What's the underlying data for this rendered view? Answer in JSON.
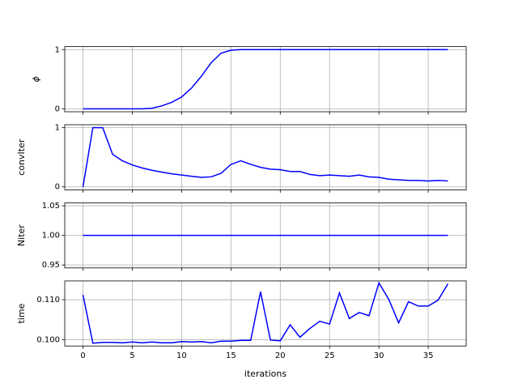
{
  "chart_data": [
    {
      "type": "line",
      "ylabel": "ϕ",
      "color": "#0000ff",
      "grid": true,
      "x": [
        0,
        1,
        2,
        3,
        4,
        5,
        6,
        7,
        8,
        9,
        10,
        11,
        12,
        13,
        14,
        15,
        16,
        17,
        18,
        19,
        20,
        21,
        22,
        23,
        24,
        25,
        26,
        27,
        28,
        29,
        30,
        31,
        32,
        33,
        34,
        35,
        36,
        37
      ],
      "xlim": [
        -1.85,
        38.85
      ],
      "xticks": [
        0,
        5,
        10,
        15,
        20,
        25,
        30,
        35
      ],
      "values": [
        0,
        0,
        0,
        0,
        0,
        0,
        0,
        0.01,
        0.05,
        0.11,
        0.2,
        0.35,
        0.55,
        0.78,
        0.94,
        0.99,
        1,
        1,
        1,
        1,
        1,
        1,
        1,
        1,
        1,
        1,
        1,
        1,
        1,
        1,
        1,
        1,
        1,
        1,
        1,
        1,
        1,
        1
      ],
      "ylim": [
        -0.05,
        1.05
      ],
      "yticks": [
        0,
        1
      ]
    },
    {
      "type": "line",
      "ylabel": "convIter",
      "color": "#0000ff",
      "grid": true,
      "x": [
        0,
        1,
        2,
        3,
        4,
        5,
        6,
        7,
        8,
        9,
        10,
        11,
        12,
        13,
        14,
        15,
        16,
        17,
        18,
        19,
        20,
        21,
        22,
        23,
        24,
        25,
        26,
        27,
        28,
        29,
        30,
        31,
        32,
        33,
        34,
        35,
        36,
        37
      ],
      "xlim": [
        -1.85,
        38.85
      ],
      "xticks": [
        0,
        5,
        10,
        15,
        20,
        25,
        30,
        35
      ],
      "values": [
        0,
        1,
        1,
        0.55,
        0.44,
        0.37,
        0.32,
        0.28,
        0.25,
        0.22,
        0.2,
        0.18,
        0.16,
        0.17,
        0.23,
        0.38,
        0.44,
        0.38,
        0.33,
        0.3,
        0.29,
        0.26,
        0.26,
        0.21,
        0.19,
        0.2,
        0.19,
        0.18,
        0.2,
        0.17,
        0.16,
        0.13,
        0.12,
        0.11,
        0.11,
        0.1,
        0.11,
        0.1
      ],
      "ylim": [
        -0.05,
        1.05
      ],
      "yticks": [
        0,
        1
      ]
    },
    {
      "type": "line",
      "ylabel": "Niter",
      "color": "#0000ff",
      "grid": true,
      "x": [
        0,
        1,
        2,
        3,
        4,
        5,
        6,
        7,
        8,
        9,
        10,
        11,
        12,
        13,
        14,
        15,
        16,
        17,
        18,
        19,
        20,
        21,
        22,
        23,
        24,
        25,
        26,
        27,
        28,
        29,
        30,
        31,
        32,
        33,
        34,
        35,
        36,
        37
      ],
      "xlim": [
        -1.85,
        38.85
      ],
      "xticks": [
        0,
        5,
        10,
        15,
        20,
        25,
        30,
        35
      ],
      "values": [
        1,
        1,
        1,
        1,
        1,
        1,
        1,
        1,
        1,
        1,
        1,
        1,
        1,
        1,
        1,
        1,
        1,
        1,
        1,
        1,
        1,
        1,
        1,
        1,
        1,
        1,
        1,
        1,
        1,
        1,
        1,
        1,
        1,
        1,
        1,
        1,
        1,
        1
      ],
      "ylim": [
        0.945,
        1.055
      ],
      "yticks": [
        0.95,
        {
          "value": 1,
          "label": "1.00"
        },
        1.05
      ]
    },
    {
      "type": "line",
      "ylabel": "time",
      "xlabel": "iterations",
      "color": "#0000ff",
      "grid": true,
      "x": [
        0,
        1,
        2,
        3,
        4,
        5,
        6,
        7,
        8,
        9,
        10,
        11,
        12,
        13,
        14,
        15,
        16,
        17,
        18,
        19,
        20,
        21,
        22,
        23,
        24,
        25,
        26,
        27,
        28,
        29,
        30,
        31,
        32,
        33,
        34,
        35,
        36,
        37
      ],
      "xlim": [
        -1.85,
        38.85
      ],
      "xticks": [
        0,
        5,
        10,
        15,
        20,
        25,
        30,
        35
      ],
      "values": [
        0.1112,
        0.0991,
        0.0993,
        0.0993,
        0.0992,
        0.0994,
        0.0992,
        0.0994,
        0.0992,
        0.0992,
        0.0995,
        0.0994,
        0.0995,
        0.0992,
        0.0996,
        0.0996,
        0.0998,
        0.0998,
        0.112,
        0.0999,
        0.0997,
        0.1037,
        0.1006,
        0.1028,
        0.1046,
        0.1039,
        0.1117,
        0.1053,
        0.1068,
        0.106,
        0.1142,
        0.1101,
        0.1042,
        0.1095,
        0.1084,
        0.1084,
        0.1099,
        0.114
      ],
      "ylim": [
        0.0984,
        0.1147
      ],
      "yticks": [
        {
          "value": 0.1,
          "label": "0.100"
        },
        {
          "value": 0.11,
          "label": "0.110"
        }
      ]
    }
  ]
}
